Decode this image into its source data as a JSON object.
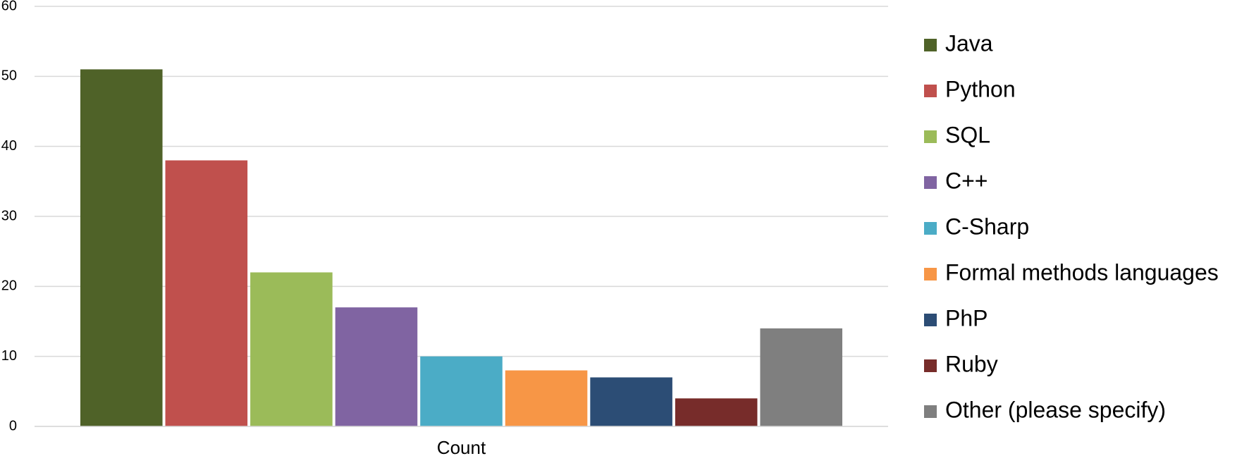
{
  "chart_data": {
    "type": "bar",
    "categories": [
      "Count"
    ],
    "series": [
      {
        "name": "Java",
        "color": "#4f6228",
        "values": [
          51
        ]
      },
      {
        "name": "Python",
        "color": "#c0504d",
        "values": [
          38
        ]
      },
      {
        "name": "SQL",
        "color": "#9bbb59",
        "values": [
          22
        ]
      },
      {
        "name": "C++",
        "color": "#8064a2",
        "values": [
          17
        ]
      },
      {
        "name": "C-Sharp",
        "color": "#4bacc6",
        "values": [
          10
        ]
      },
      {
        "name": "Formal methods languages",
        "color": "#f79646",
        "values": [
          8
        ]
      },
      {
        "name": "PhP",
        "color": "#2c4d75",
        "values": [
          7
        ]
      },
      {
        "name": "Ruby",
        "color": "#772c2a",
        "values": [
          4
        ]
      },
      {
        "name": "Other (please specify)",
        "color": "#7f7f7f",
        "values": [
          14
        ]
      }
    ],
    "ylim": [
      0,
      60
    ],
    "yticks": [
      0,
      10,
      20,
      30,
      40,
      50,
      60
    ],
    "grid": true,
    "legend": "right"
  }
}
